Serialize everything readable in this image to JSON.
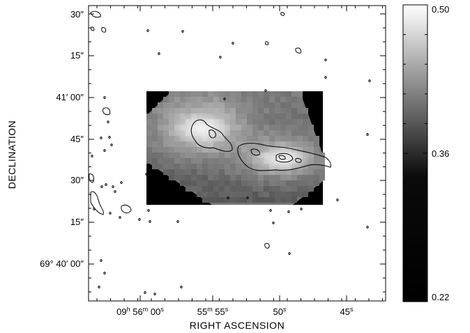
{
  "chart_data": {
    "type": "heatmap",
    "xlabel": "RIGHT ASCENSION",
    "ylabel": "DECLINATION",
    "x_ticks": [
      {
        "h": "09",
        "m": "56",
        "s": "00",
        "label_parts": [
          "09",
          "h",
          " 56",
          "m",
          " 00",
          "s"
        ]
      },
      {
        "m": "55",
        "s": "55",
        "label_parts": [
          "55",
          "m",
          " 55",
          "s"
        ]
      },
      {
        "s": "50",
        "label_parts": [
          "50",
          "s"
        ]
      },
      {
        "s": "45",
        "label_parts": [
          "45",
          "s"
        ]
      }
    ],
    "y_ticks": [
      {
        "label": "30″"
      },
      {
        "label": "15″"
      },
      {
        "label": "41′ 00″"
      },
      {
        "label": "45″"
      },
      {
        "label": "30″"
      },
      {
        "label": "15″"
      },
      {
        "label": "69° 40′ 00″"
      }
    ],
    "colorbar": {
      "min": 0.22,
      "max": 0.5,
      "ticks": [
        "0.50",
        "0.36",
        "0.22"
      ],
      "colormap": "grayscale"
    },
    "image_style": {
      "background": "#000000",
      "contour_color": "#000000"
    }
  }
}
